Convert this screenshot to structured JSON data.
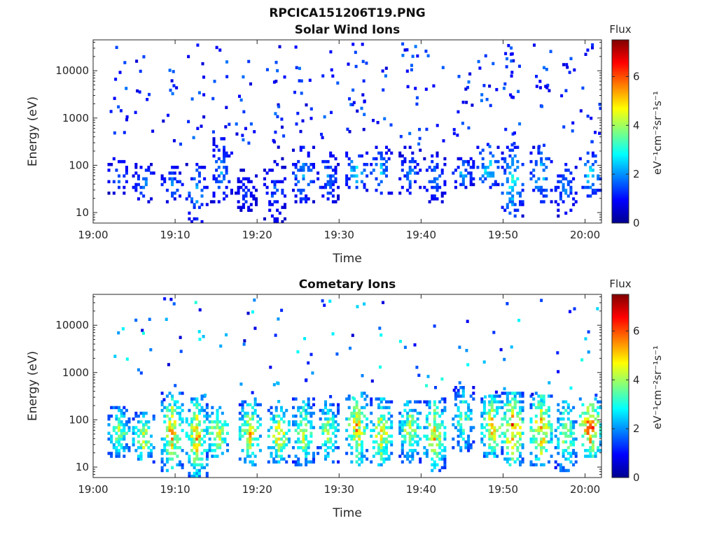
{
  "figure_title": "RPCICA151206T19.PNG",
  "chart_data": [
    {
      "type": "heatmap",
      "title": "Solar Wind Ions",
      "xlabel": "Time",
      "ylabel": "Energy (eV)",
      "y_scale": "log",
      "xlim": [
        "19:00",
        "20:02"
      ],
      "ylim": [
        6,
        45000
      ],
      "xticks": [
        "19:00",
        "19:10",
        "19:20",
        "19:30",
        "19:40",
        "19:50",
        "20:00"
      ],
      "yticks": [
        "10",
        "100",
        "1000",
        "10000"
      ],
      "colorbar": {
        "label": "Flux",
        "unit": "eV⁻¹cm⁻²sr⁻¹s⁻¹",
        "range": [
          0,
          7.5
        ],
        "ticks": [
          "0",
          "2",
          "4",
          "6"
        ],
        "colormap": "jet"
      },
      "bursts": [
        {
          "time": "19:03",
          "emin": 25,
          "emax": 150,
          "peak": 2.0
        },
        {
          "time": "19:06",
          "emin": 15,
          "emax": 120,
          "peak": 2.2
        },
        {
          "time": "19:09.5",
          "emin": 15,
          "emax": 100,
          "peak": 2.0
        },
        {
          "time": "19:12.5",
          "emin": 6,
          "emax": 120,
          "peak": 2.4
        },
        {
          "time": "19:15.5",
          "emin": 15,
          "emax": 400,
          "peak": 2.2
        },
        {
          "time": "19:18.5",
          "emin": 10,
          "emax": 80,
          "peak": 1.6
        },
        {
          "time": "19:22",
          "emin": 6,
          "emax": 150,
          "peak": 1.8
        },
        {
          "time": "19:25.5",
          "emin": 15,
          "emax": 250,
          "peak": 2.4
        },
        {
          "time": "19:28.5",
          "emin": 15,
          "emax": 200,
          "peak": 2.0
        },
        {
          "time": "19:32",
          "emin": 25,
          "emax": 250,
          "peak": 2.8
        },
        {
          "time": "19:35",
          "emin": 20,
          "emax": 250,
          "peak": 2.6
        },
        {
          "time": "19:38.5",
          "emin": 20,
          "emax": 250,
          "peak": 2.0
        },
        {
          "time": "19:41.5",
          "emin": 15,
          "emax": 200,
          "peak": 2.0
        },
        {
          "time": "19:45",
          "emin": 30,
          "emax": 150,
          "peak": 2.4
        },
        {
          "time": "19:48",
          "emin": 30,
          "emax": 300,
          "peak": 3.0
        },
        {
          "time": "19:51",
          "emin": 8,
          "emax": 250,
          "peak": 3.2
        },
        {
          "time": "19:54.5",
          "emin": 15,
          "emax": 250,
          "peak": 2.8
        },
        {
          "time": "19:57.5",
          "emin": 8,
          "emax": 120,
          "peak": 2.2
        },
        {
          "time": "20:00.5",
          "emin": 20,
          "emax": 200,
          "peak": 3.0
        }
      ]
    },
    {
      "type": "heatmap",
      "title": "Cometary Ions",
      "xlabel": "Time",
      "ylabel": "Energy (eV)",
      "y_scale": "log",
      "xlim": [
        "19:00",
        "20:02"
      ],
      "ylim": [
        6,
        45000
      ],
      "xticks": [
        "19:00",
        "19:10",
        "19:20",
        "19:30",
        "19:40",
        "19:50",
        "20:00"
      ],
      "yticks": [
        "10",
        "100",
        "1000",
        "10000"
      ],
      "colorbar": {
        "label": "Flux",
        "unit": "eV⁻¹cm⁻²sr⁻¹s⁻¹",
        "range": [
          0,
          7.5
        ],
        "ticks": [
          "0",
          "2",
          "4",
          "6"
        ],
        "colormap": "jet"
      },
      "bursts": [
        {
          "time": "19:03",
          "emin": 15,
          "emax": 200,
          "peak": 4.5
        },
        {
          "time": "19:06",
          "emin": 12,
          "emax": 150,
          "peak": 5.0
        },
        {
          "time": "19:09.5",
          "emin": 8,
          "emax": 400,
          "peak": 5.8
        },
        {
          "time": "19:12.5",
          "emin": 6,
          "emax": 350,
          "peak": 5.6
        },
        {
          "time": "19:15",
          "emin": 15,
          "emax": 200,
          "peak": 5.4
        },
        {
          "time": "19:19",
          "emin": 10,
          "emax": 300,
          "peak": 5.2
        },
        {
          "time": "19:22.5",
          "emin": 12,
          "emax": 200,
          "peak": 5.6
        },
        {
          "time": "19:25.5",
          "emin": 10,
          "emax": 300,
          "peak": 4.8
        },
        {
          "time": "19:28.5",
          "emin": 12,
          "emax": 250,
          "peak": 4.6
        },
        {
          "time": "19:32",
          "emin": 10,
          "emax": 400,
          "peak": 5.6
        },
        {
          "time": "19:35",
          "emin": 10,
          "emax": 300,
          "peak": 5.4
        },
        {
          "time": "19:38.5",
          "emin": 12,
          "emax": 300,
          "peak": 4.8
        },
        {
          "time": "19:41.5",
          "emin": 8,
          "emax": 300,
          "peak": 5.4
        },
        {
          "time": "19:45",
          "emin": 20,
          "emax": 500,
          "peak": 4.2
        },
        {
          "time": "19:48.5",
          "emin": 15,
          "emax": 350,
          "peak": 5.6
        },
        {
          "time": "19:51",
          "emin": 10,
          "emax": 400,
          "peak": 6.4
        },
        {
          "time": "19:54.5",
          "emin": 10,
          "emax": 400,
          "peak": 6.0
        },
        {
          "time": "19:57.5",
          "emin": 8,
          "emax": 300,
          "peak": 4.6
        },
        {
          "time": "20:00.5",
          "emin": 15,
          "emax": 300,
          "peak": 6.8
        }
      ]
    }
  ]
}
